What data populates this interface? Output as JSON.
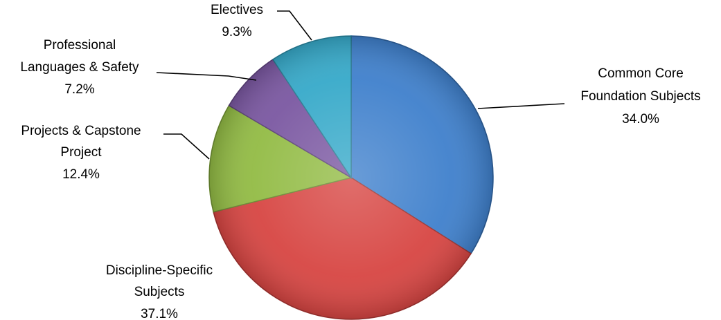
{
  "chart_data": {
    "type": "pie",
    "title": "",
    "slices": [
      {
        "label": [
          "Common Core",
          "Foundation Subjects"
        ],
        "percent_label": "34.0%",
        "value": 34.0,
        "color": "#3f80cc"
      },
      {
        "label": [
          "Discipline-Specific",
          "Subjects"
        ],
        "percent_label": "37.1%",
        "value": 37.1,
        "color": "#d74542"
      },
      {
        "label": [
          "Projects & Capstone",
          "Project"
        ],
        "percent_label": "12.4%",
        "value": 12.4,
        "color": "#92bb44"
      },
      {
        "label": [
          "Professional",
          "Languages & Safety"
        ],
        "percent_label": "7.2%",
        "value": 7.2,
        "color": "#7a57a1"
      },
      {
        "label": [
          "Electives"
        ],
        "percent_label": "9.3%",
        "value": 9.3,
        "color": "#36a9c9"
      }
    ],
    "legend": "none",
    "style": "3d-shaded"
  }
}
